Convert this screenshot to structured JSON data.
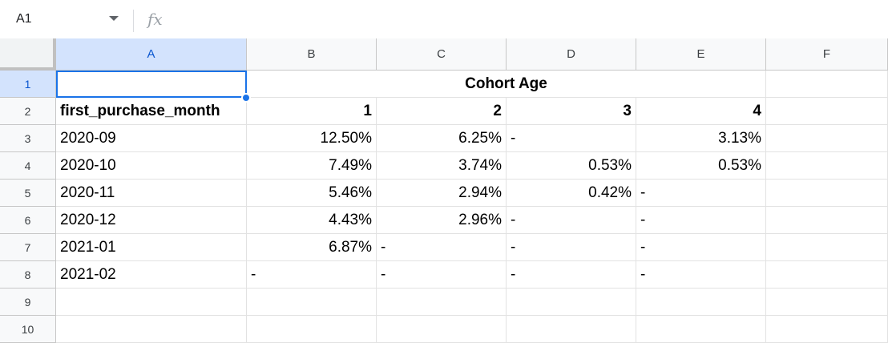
{
  "formula_bar": {
    "name_box": "A1",
    "fx_label": "fx",
    "formula": ""
  },
  "columns": [
    "A",
    "B",
    "C",
    "D",
    "E",
    "F"
  ],
  "rows": [
    "1",
    "2",
    "3",
    "4",
    "5",
    "6",
    "7",
    "8",
    "9",
    "10"
  ],
  "header_merged": "Cohort Age",
  "table": {
    "header": [
      "first_purchase_month",
      "1",
      "2",
      "3",
      "4"
    ],
    "data": [
      [
        "2020-09",
        "12.50%",
        "6.25%",
        "-",
        "3.13%"
      ],
      [
        "2020-10",
        "7.49%",
        "3.74%",
        "0.53%",
        "0.53%"
      ],
      [
        "2020-11",
        "5.46%",
        "2.94%",
        "0.42%",
        "-"
      ],
      [
        "2020-12",
        "4.43%",
        "2.96%",
        "-",
        "-"
      ],
      [
        "2021-01",
        "6.87%",
        "-",
        "-",
        "-"
      ],
      [
        "2021-02",
        "-",
        "-",
        "-",
        "-"
      ]
    ]
  },
  "selected_cell": "A1",
  "colors": {
    "selection": "#1a73e8"
  }
}
